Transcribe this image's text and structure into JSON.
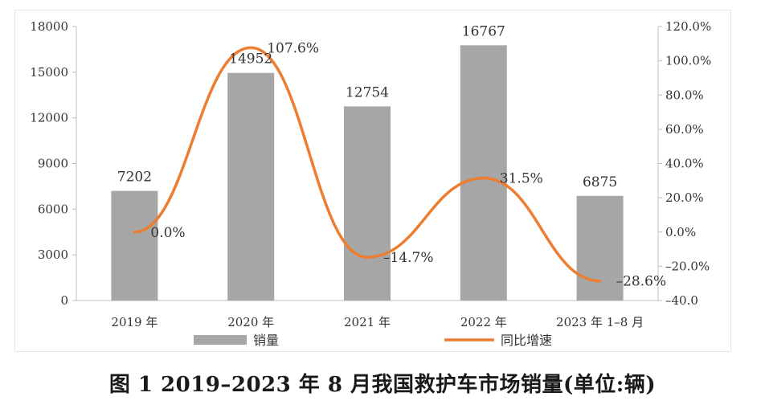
{
  "caption": "图 1 2019–2023 年 8 月我国救护车市场销量(单位:辆)",
  "colors": {
    "bar": "#a6a6a6",
    "line": "#ed7d31",
    "axis": "#bfbfbf",
    "text": "#333333"
  },
  "chart_data": {
    "type": "bar",
    "categories": [
      "2019 年",
      "2020 年",
      "2021 年",
      "2022 年",
      "2023 年 1–8 月"
    ],
    "series": [
      {
        "name": "销量",
        "type": "bar",
        "axis": "left",
        "values": [
          7202,
          14952,
          12754,
          16767,
          6875
        ],
        "labels": [
          "7202",
          "14952",
          "12754",
          "16767",
          "6875"
        ]
      },
      {
        "name": "同比增速",
        "type": "line",
        "smooth": true,
        "axis": "right",
        "values": [
          0.0,
          107.6,
          -14.7,
          31.5,
          -28.6
        ],
        "labels": [
          "0.0%",
          "107.6%",
          "–14.7%",
          "31.5%",
          "–28.6%"
        ]
      }
    ],
    "y_left": {
      "min": 0,
      "max": 18000,
      "ticks": [
        0,
        3000,
        6000,
        9000,
        12000,
        15000,
        18000
      ],
      "tick_labels": [
        "0",
        "3000",
        "6000",
        "9000",
        "12000",
        "15000",
        "18000"
      ]
    },
    "y_right": {
      "min": -40,
      "max": 120,
      "ticks": [
        -40,
        -20,
        0,
        20,
        40,
        60,
        80,
        100,
        120
      ],
      "tick_labels": [
        "–40.0",
        "–20.0%",
        "0.0%",
        "20.0%",
        "40.0%",
        "60.0%",
        "80.0%",
        "100.0%",
        "120.0%"
      ]
    },
    "legend": {
      "position": "bottom",
      "items": [
        "销量",
        "同比增速"
      ]
    },
    "grid": false
  }
}
